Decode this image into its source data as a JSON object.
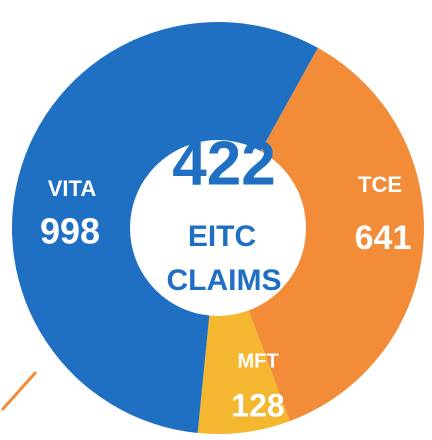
{
  "chart_data": {
    "type": "pie",
    "categories": [
      "TCE",
      "MFT",
      "VITA"
    ],
    "values": [
      641,
      128,
      998
    ],
    "colors": [
      "#f28c38",
      "#f5b730",
      "#1f6fc3"
    ],
    "center_number": 422,
    "center_text": [
      "EITC",
      "CLAIMS"
    ]
  }
}
